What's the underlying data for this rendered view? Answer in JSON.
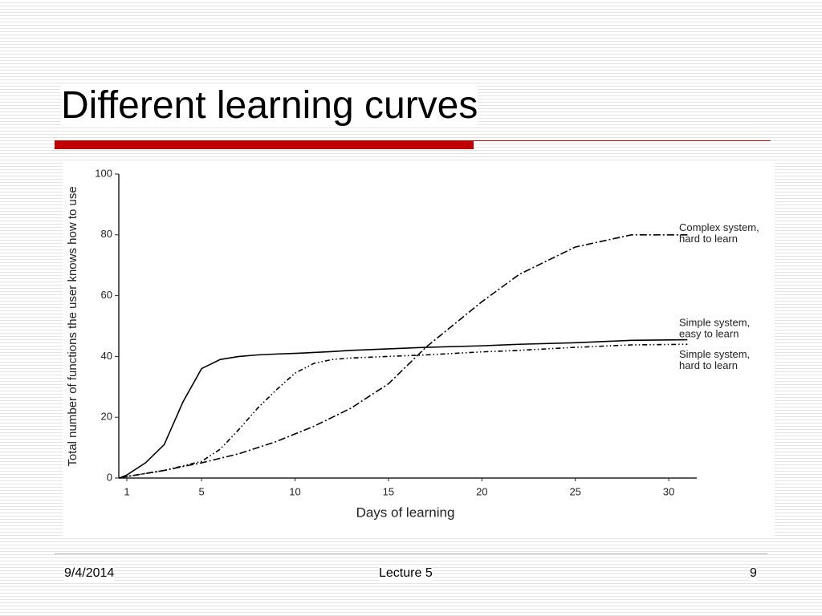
{
  "slide": {
    "title": "Different learning curves",
    "footer_date": "9/4/2014",
    "footer_center": "Lecture 5",
    "page_number": "9"
  },
  "chart_data": {
    "type": "line",
    "x_label": "Days of learning",
    "y_label": "Total number of functions the user knows how to use",
    "x": [
      0.6,
      1,
      2,
      3,
      4,
      5,
      6,
      7,
      8,
      9,
      10,
      11,
      12,
      13,
      15,
      17,
      20,
      22,
      25,
      28,
      31
    ],
    "series": [
      {
        "name": "Simple system, easy to learn",
        "color": "#000000",
        "dash": "solid",
        "values": [
          0,
          1,
          5,
          11,
          25,
          36,
          39,
          40,
          40.5,
          40.8,
          41,
          41.3,
          41.6,
          42,
          42.5,
          43,
          43.5,
          44,
          44.5,
          45.3,
          45.5
        ]
      },
      {
        "name": "Simple system, hard to learn",
        "color": "#000000",
        "dash": "dash-dot-dot",
        "values": [
          0,
          0.5,
          1.5,
          2.5,
          4,
          5.5,
          9.5,
          16,
          23,
          29,
          34.5,
          37.7,
          39,
          39.5,
          40,
          40.5,
          41.5,
          42,
          43,
          43.8,
          44
        ]
      },
      {
        "name": "Complex system, hard to learn",
        "color": "#000000",
        "dash": "dash-dot",
        "values": [
          0,
          0.5,
          1.5,
          2.5,
          3.8,
          5,
          6.5,
          8,
          10,
          12,
          14.5,
          17,
          20,
          23,
          31,
          43,
          58,
          67,
          76,
          80,
          80
        ]
      }
    ],
    "xlim": [
      0.57,
      31.5
    ],
    "xticks": [
      1,
      5,
      10,
      15,
      20,
      25,
      30
    ],
    "ylim": [
      0,
      100
    ],
    "yticks": [
      0,
      20,
      40,
      60,
      80,
      100
    ],
    "grid": false
  }
}
